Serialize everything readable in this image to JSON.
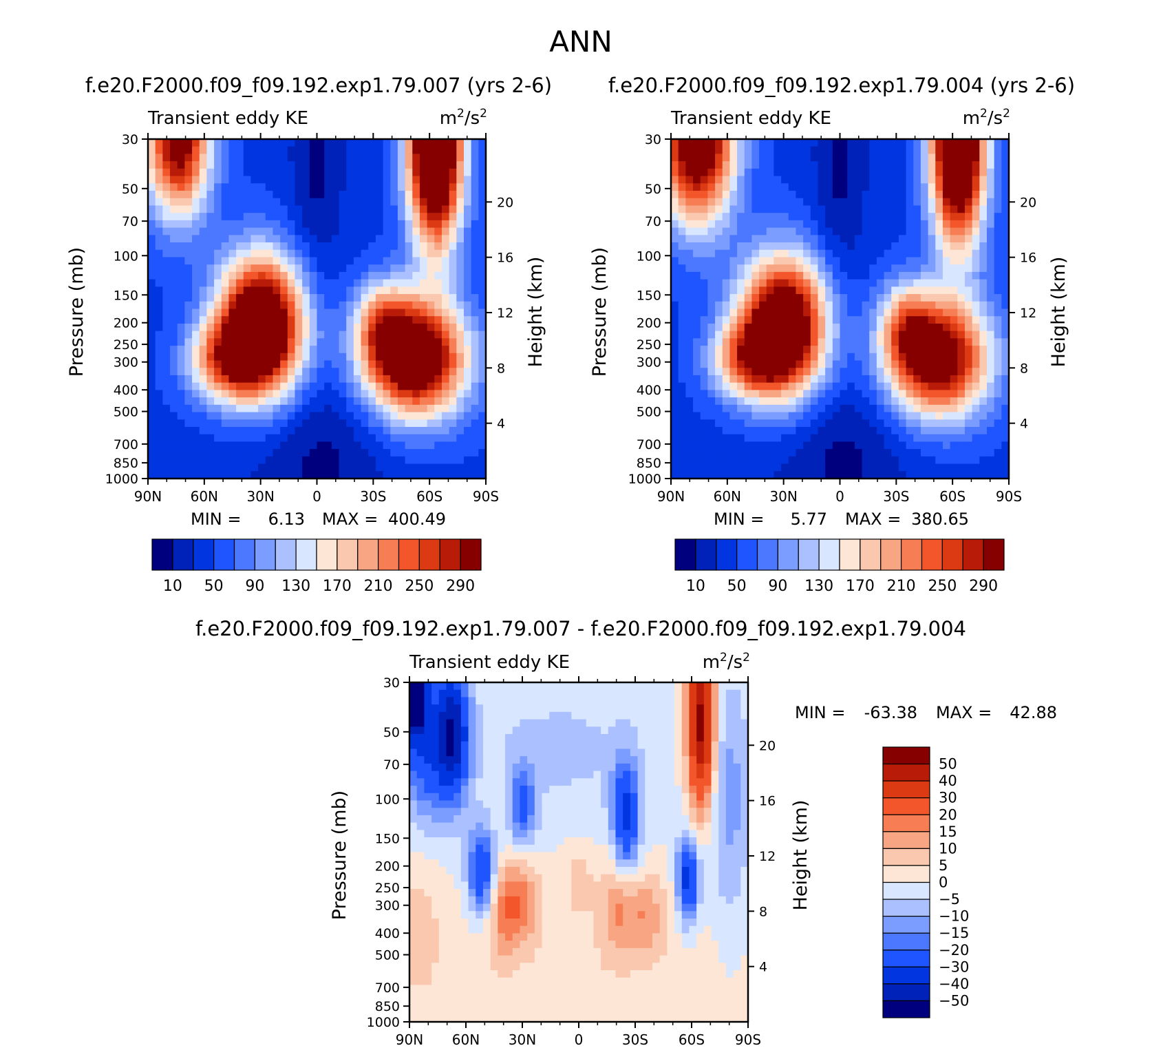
{
  "title": "ANN",
  "colors": {
    "seq": [
      "#00007f",
      "#0022b8",
      "#0035e0",
      "#1e55ff",
      "#4b78ff",
      "#7b9dff",
      "#abc0ff",
      "#d8e6ff",
      "#fde6d6",
      "#f9c8ae",
      "#f7a582",
      "#f77e54",
      "#f3562a",
      "#dc3a12",
      "#b81c08",
      "#870000"
    ],
    "div": [
      "#00007f",
      "#0022b8",
      "#0035e0",
      "#1e55ff",
      "#4b78ff",
      "#7b9dff",
      "#abc0ff",
      "#d8e6ff",
      "#fde6d6",
      "#f9c8ae",
      "#f7a582",
      "#f77e54",
      "#f3562a",
      "#dc3a12",
      "#b81c08",
      "#870000"
    ]
  },
  "chart_data": [
    {
      "type": "heatmap",
      "id": "run007",
      "title": "f.e20.F2000.f09_f09.192.exp1.79.007 (yrs 2-6)",
      "subtitle_left": "Transient eddy KE",
      "units_base": "m",
      "units_exp1": "2",
      "units_mid": "/s",
      "units_exp2": "2",
      "ylabel": "Pressure (mb)",
      "y2label": "Height (km)",
      "xticks": [
        "90N",
        "60N",
        "30N",
        "0",
        "30S",
        "60S",
        "90S"
      ],
      "yticks": [
        30,
        50,
        70,
        100,
        150,
        200,
        250,
        300,
        400,
        500,
        700,
        850,
        1000
      ],
      "y2ticks": [
        20,
        16,
        12,
        8,
        4
      ],
      "min_label": "MIN =",
      "min_value": "6.13",
      "max_label": "MAX =",
      "max_value": "400.49",
      "colorbar_labels": [
        "10",
        "50",
        "90",
        "130",
        "170",
        "210",
        "250",
        "290"
      ],
      "levels": [
        10,
        30,
        50,
        70,
        90,
        110,
        130,
        150,
        170,
        190,
        210,
        230,
        250,
        270,
        290
      ],
      "field": {
        "base": 45,
        "features": [
          {
            "lat": 30,
            "p": 210,
            "amp": 370,
            "sx": 16,
            "sy": 0.5
          },
          {
            "lat": 50,
            "p": 300,
            "amp": 150,
            "sx": 14,
            "sy": 0.28
          },
          {
            "lat": -52,
            "p": 290,
            "amp": 330,
            "sx": 19,
            "sy": 0.42
          },
          {
            "lat": -35,
            "p": 200,
            "amp": 120,
            "sx": 10,
            "sy": 0.3
          },
          {
            "lat": 74,
            "p": 30,
            "amp": 280,
            "sx": 12,
            "sy": 0.55
          },
          {
            "lat": -63,
            "p": 30,
            "amp": 420,
            "sx": 10,
            "sy": 0.75
          },
          {
            "lat": 0,
            "p": 800,
            "amp": -40,
            "sx": 28,
            "sy": 0.7
          },
          {
            "lat": 0,
            "p": 40,
            "amp": -40,
            "sx": 10,
            "sy": 0.9
          }
        ]
      }
    },
    {
      "type": "heatmap",
      "id": "run004",
      "title": "f.e20.F2000.f09_f09.192.exp1.79.004 (yrs 2-6)",
      "subtitle_left": "Transient eddy KE",
      "units_base": "m",
      "units_exp1": "2",
      "units_mid": "/s",
      "units_exp2": "2",
      "ylabel": "Pressure (mb)",
      "y2label": "Height (km)",
      "xticks": [
        "90N",
        "60N",
        "30N",
        "0",
        "30S",
        "60S",
        "90S"
      ],
      "yticks": [
        30,
        50,
        70,
        100,
        150,
        200,
        250,
        300,
        400,
        500,
        700,
        850,
        1000
      ],
      "y2ticks": [
        20,
        16,
        12,
        8,
        4
      ],
      "min_label": "MIN =",
      "min_value": "5.77",
      "max_label": "MAX =",
      "max_value": "380.65",
      "colorbar_labels": [
        "10",
        "50",
        "90",
        "130",
        "170",
        "210",
        "250",
        "290"
      ],
      "levels": [
        10,
        30,
        50,
        70,
        90,
        110,
        130,
        150,
        170,
        190,
        210,
        230,
        250,
        270,
        290
      ],
      "field": {
        "base": 45,
        "features": [
          {
            "lat": 30,
            "p": 210,
            "amp": 350,
            "sx": 16,
            "sy": 0.5
          },
          {
            "lat": 50,
            "p": 290,
            "amp": 150,
            "sx": 14,
            "sy": 0.28
          },
          {
            "lat": -52,
            "p": 290,
            "amp": 300,
            "sx": 19,
            "sy": 0.42
          },
          {
            "lat": -35,
            "p": 200,
            "amp": 110,
            "sx": 10,
            "sy": 0.3
          },
          {
            "lat": 76,
            "p": 30,
            "amp": 320,
            "sx": 14,
            "sy": 0.6
          },
          {
            "lat": -63,
            "p": 30,
            "amp": 400,
            "sx": 10,
            "sy": 0.75
          },
          {
            "lat": 0,
            "p": 800,
            "amp": -40,
            "sx": 28,
            "sy": 0.7
          },
          {
            "lat": 0,
            "p": 40,
            "amp": -40,
            "sx": 10,
            "sy": 0.9
          }
        ]
      }
    },
    {
      "type": "heatmap",
      "id": "diff",
      "title": "f.e20.F2000.f09_f09.192.exp1.79.007 - f.e20.F2000.f09_f09.192.exp1.79.004",
      "subtitle_left": "Transient eddy KE",
      "units_base": "m",
      "units_exp1": "2",
      "units_mid": "/s",
      "units_exp2": "2",
      "ylabel": "Pressure (mb)",
      "y2label": "Height (km)",
      "xticks": [
        "90N",
        "60N",
        "30N",
        "0",
        "30S",
        "60S",
        "90S"
      ],
      "yticks": [
        30,
        50,
        70,
        100,
        150,
        200,
        250,
        300,
        400,
        500,
        700,
        850,
        1000
      ],
      "y2ticks": [
        20,
        16,
        12,
        8,
        4
      ],
      "min_label": "MIN =",
      "min_value": "-63.38",
      "max_label": "MAX =",
      "max_value": "42.88",
      "colorbar_labels": [
        "50",
        "40",
        "30",
        "20",
        "15",
        "10",
        "5",
        "0",
        "-5",
        "-10",
        "-15",
        "-20",
        "-30",
        "-40",
        "-50"
      ],
      "levels": [
        -50,
        -40,
        -30,
        -20,
        -15,
        -10,
        -5,
        0,
        5,
        10,
        15,
        20,
        30,
        40,
        50
      ],
      "field": {
        "base": 0,
        "features": [
          {
            "lat": 0,
            "p": 500,
            "amp": 4,
            "sx": 60,
            "sy": 0.6
          },
          {
            "lat": 30,
            "p": 280,
            "amp": 16,
            "sx": 6,
            "sy": 0.3
          },
          {
            "lat": 40,
            "p": 320,
            "amp": 14,
            "sx": 5,
            "sy": 0.35
          },
          {
            "lat": -20,
            "p": 290,
            "amp": 12,
            "sx": 6,
            "sy": 0.35
          },
          {
            "lat": -35,
            "p": 330,
            "amp": 12,
            "sx": 8,
            "sy": 0.3
          },
          {
            "lat": 85,
            "p": 400,
            "amp": 7,
            "sx": 8,
            "sy": 0.5
          },
          {
            "lat": 0,
            "p": 220,
            "amp": 6,
            "sx": 6,
            "sy": 0.25
          },
          {
            "lat": -65,
            "p": 45,
            "amp": 55,
            "sx": 5,
            "sy": 0.6
          },
          {
            "lat": 88,
            "p": 35,
            "amp": -65,
            "sx": 5,
            "sy": 0.28
          },
          {
            "lat": 67,
            "p": 50,
            "amp": -42,
            "sx": 6,
            "sy": 0.45
          },
          {
            "lat": 80,
            "p": 60,
            "amp": -25,
            "sx": 10,
            "sy": 0.5
          },
          {
            "lat": 52,
            "p": 210,
            "amp": -30,
            "sx": 5,
            "sy": 0.3
          },
          {
            "lat": 30,
            "p": 110,
            "amp": -20,
            "sx": 5,
            "sy": 0.3
          },
          {
            "lat": -25,
            "p": 120,
            "amp": -32,
            "sx": 5,
            "sy": 0.4
          },
          {
            "lat": -58,
            "p": 230,
            "amp": -35,
            "sx": 4,
            "sy": 0.3
          },
          {
            "lat": 10,
            "p": 60,
            "amp": -6,
            "sx": 40,
            "sy": 0.6
          },
          {
            "lat": -80,
            "p": 100,
            "amp": -12,
            "sx": 8,
            "sy": 0.9
          }
        ]
      }
    }
  ]
}
